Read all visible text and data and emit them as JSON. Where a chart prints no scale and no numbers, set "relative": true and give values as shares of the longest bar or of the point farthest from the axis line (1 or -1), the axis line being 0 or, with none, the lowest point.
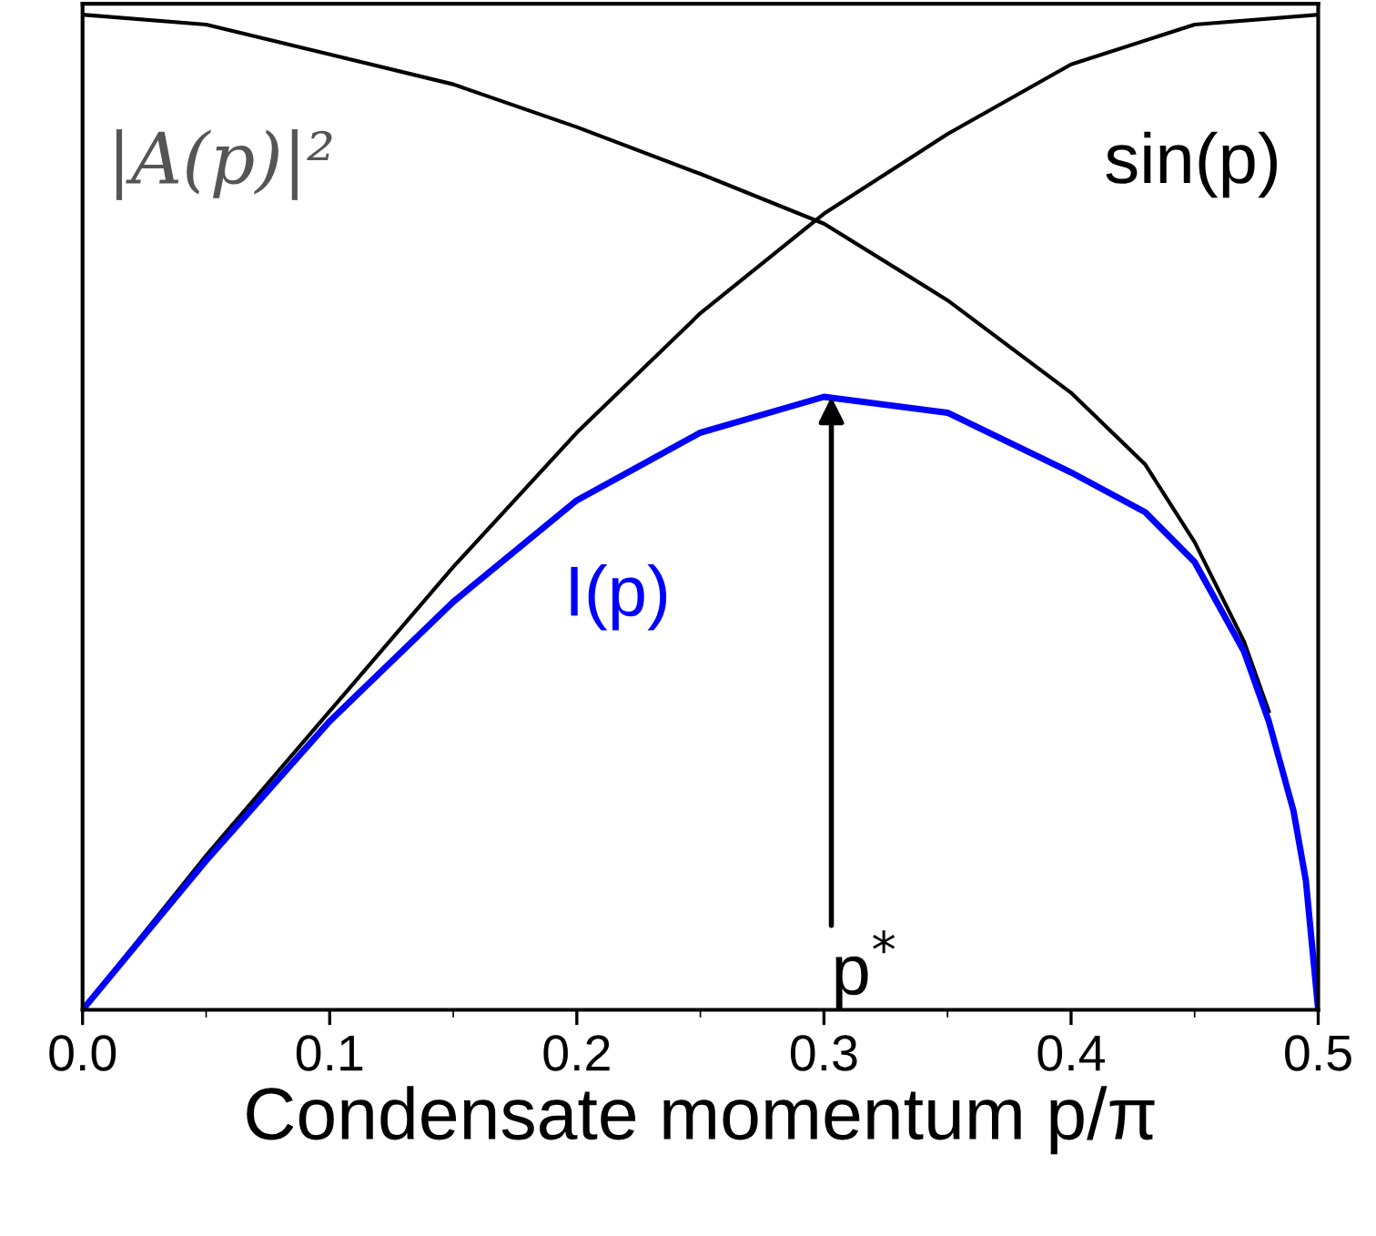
{
  "chart_data": {
    "type": "line",
    "relative": true,
    "xlabel": "Condensate momentum p/π",
    "x": [
      0,
      0.05,
      0.1,
      0.15,
      0.2,
      0.25,
      0.3,
      0.35,
      0.4,
      0.43,
      0.45,
      0.47,
      0.48,
      0.49,
      0.495,
      0.5
    ],
    "series": [
      {
        "name": "|A(p)|²",
        "color": "#000000",
        "values": [
          1,
          0.99,
          0.96,
          0.93,
          0.887,
          0.84,
          0.79,
          0.713,
          0.62,
          0.548,
          0.47,
          0.37,
          0.3,
          null,
          null,
          null
        ]
      },
      {
        "name": "sin(p)",
        "color": "#000000",
        "x": [
          0,
          0.05,
          0.1,
          0.15,
          0.2,
          0.25,
          0.3,
          0.35,
          0.4,
          0.45,
          0.5
        ],
        "values": [
          0,
          0.155,
          0.3,
          0.445,
          0.58,
          0.7,
          0.8,
          0.88,
          0.95,
          0.99,
          1
        ]
      },
      {
        "name": "I(p)",
        "color": "#0000ff",
        "values": [
          0,
          0.15,
          0.29,
          0.41,
          0.512,
          0.58,
          0.616,
          0.6,
          0.54,
          0.5,
          0.45,
          0.36,
          0.29,
          0.2,
          0.13,
          0
        ]
      }
    ],
    "annotations": [
      {
        "text": "p$^{*}$",
        "x": 0.303,
        "y": 0.616
      }
    ],
    "xlim": [
      0,
      0.5
    ],
    "xticks": [
      {
        "value": 0,
        "label": "0.0"
      },
      0.1,
      0.2,
      0.3,
      0.4,
      0.5
    ],
    "tick_labels": "x",
    "grid": false,
    "legend": false,
    "marker": "none",
    "line_style": "solid"
  }
}
